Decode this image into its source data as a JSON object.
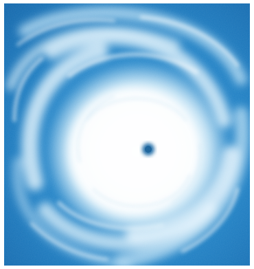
{
  "image": {
    "subject": "hurricane-satellite-view",
    "colors": {
      "ocean_deep": "#1676b9",
      "ocean_mid": "#2b8fd2",
      "cloud_light": "#d8eef8",
      "cloud_white": "#ffffff",
      "eye": "#1a6aa6"
    }
  }
}
